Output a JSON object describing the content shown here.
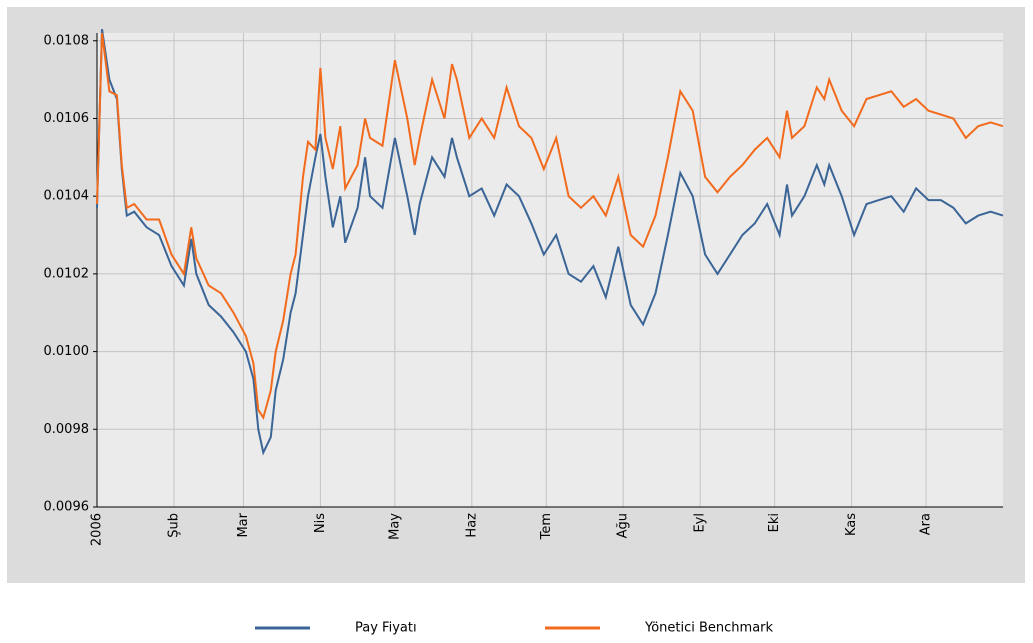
{
  "chart_data": {
    "type": "line",
    "x": [
      0,
      2,
      5,
      8,
      10,
      12,
      15,
      20,
      25,
      30,
      35,
      38,
      40,
      45,
      50,
      55,
      60,
      63,
      65,
      67,
      70,
      72,
      75,
      78,
      80,
      83,
      85,
      88,
      90,
      92,
      95,
      98,
      100,
      105,
      108,
      110,
      115,
      120,
      125,
      128,
      130,
      135,
      140,
      143,
      145,
      150,
      155,
      160,
      165,
      170,
      175,
      180,
      185,
      190,
      195,
      200,
      205,
      210,
      215,
      220,
      225,
      230,
      235,
      240,
      245,
      250,
      255,
      260,
      265,
      270,
      275,
      278,
      280,
      285,
      290,
      293,
      295,
      300,
      305,
      310,
      315,
      320,
      325,
      330,
      335,
      340,
      345,
      350,
      355,
      360,
      365
    ],
    "series": [
      {
        "name": "Pay Fiyatı",
        "color": "#3a6596",
        "values": [
          0.01037,
          0.01083,
          0.0107,
          0.01065,
          0.01047,
          0.01035,
          0.01036,
          0.01032,
          0.0103,
          0.01022,
          0.01017,
          0.01029,
          0.0102,
          0.01012,
          0.01009,
          0.01005,
          0.01,
          0.00993,
          0.0098,
          0.00974,
          0.00978,
          0.0099,
          0.00998,
          0.0101,
          0.01015,
          0.0103,
          0.0104,
          0.0105,
          0.01056,
          0.01045,
          0.01032,
          0.0104,
          0.01028,
          0.01037,
          0.0105,
          0.0104,
          0.01037,
          0.01055,
          0.0104,
          0.0103,
          0.01038,
          0.0105,
          0.01045,
          0.01055,
          0.0105,
          0.0104,
          0.01042,
          0.01035,
          0.01043,
          0.0104,
          0.01033,
          0.01025,
          0.0103,
          0.0102,
          0.01018,
          0.01022,
          0.01014,
          0.01027,
          0.01012,
          0.01007,
          0.01015,
          0.0103,
          0.01046,
          0.0104,
          0.01025,
          0.0102,
          0.01025,
          0.0103,
          0.01033,
          0.01038,
          0.0103,
          0.01043,
          0.01035,
          0.0104,
          0.01048,
          0.01043,
          0.01048,
          0.0104,
          0.0103,
          0.01038,
          0.01039,
          0.0104,
          0.01036,
          0.01042,
          0.01039,
          0.01039,
          0.01037,
          0.01033,
          0.01035,
          0.01036,
          0.01035
        ]
      },
      {
        "name": "Yönetici Benchmark",
        "color": "#f26b1d",
        "values": [
          0.01038,
          0.01082,
          0.01067,
          0.01066,
          0.01048,
          0.01037,
          0.01038,
          0.01034,
          0.01034,
          0.01025,
          0.0102,
          0.01032,
          0.01024,
          0.01017,
          0.01015,
          0.0101,
          0.01004,
          0.00997,
          0.00985,
          0.00983,
          0.0099,
          0.01,
          0.01008,
          0.0102,
          0.01025,
          0.01045,
          0.01054,
          0.01052,
          0.01073,
          0.01055,
          0.01047,
          0.01058,
          0.01042,
          0.01048,
          0.0106,
          0.01055,
          0.01053,
          0.01075,
          0.0106,
          0.01048,
          0.01055,
          0.0107,
          0.0106,
          0.01074,
          0.0107,
          0.01055,
          0.0106,
          0.01055,
          0.01068,
          0.01058,
          0.01055,
          0.01047,
          0.01055,
          0.0104,
          0.01037,
          0.0104,
          0.01035,
          0.01045,
          0.0103,
          0.01027,
          0.01035,
          0.0105,
          0.01067,
          0.01062,
          0.01045,
          0.01041,
          0.01045,
          0.01048,
          0.01052,
          0.01055,
          0.0105,
          0.01062,
          0.01055,
          0.01058,
          0.01068,
          0.01065,
          0.0107,
          0.01062,
          0.01058,
          0.01065,
          0.01066,
          0.01067,
          0.01063,
          0.01065,
          0.01062,
          0.01061,
          0.0106,
          0.01055,
          0.01058,
          0.01059,
          0.01058
        ]
      }
    ],
    "xlim": [
      0,
      365
    ],
    "xticks": [
      {
        "value": 0,
        "label": "2006"
      },
      {
        "value": 31,
        "label": "Şub"
      },
      {
        "value": 59,
        "label": "Mar"
      },
      {
        "value": 90,
        "label": "Nis"
      },
      {
        "value": 120,
        "label": "May"
      },
      {
        "value": 151,
        "label": "Haz"
      },
      {
        "value": 181,
        "label": "Tem"
      },
      {
        "value": 212,
        "label": "Ağu"
      },
      {
        "value": 243,
        "label": "Eyl"
      },
      {
        "value": 273,
        "label": "Eki"
      },
      {
        "value": 304,
        "label": "Kas"
      },
      {
        "value": 334,
        "label": "Ara"
      }
    ],
    "ylim": [
      0.0096,
      0.01082
    ],
    "yticks": [
      0.0096,
      0.0098,
      {
        "value": 0.01,
        "label": "0.0100"
      },
      0.0102,
      0.0104,
      0.0106,
      0.0108
    ],
    "grid": true
  }
}
